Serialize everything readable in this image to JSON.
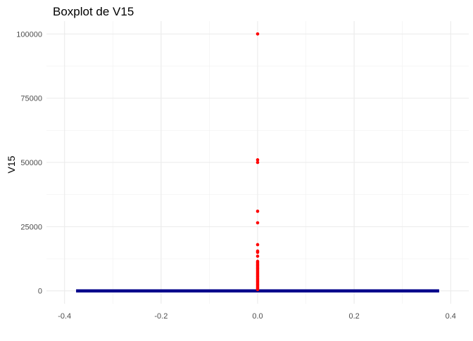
{
  "chart_data": {
    "type": "boxplot",
    "title": "Boxplot de V15",
    "xlabel": "",
    "ylabel": "V15",
    "xlim": [
      -0.4,
      0.4
    ],
    "ylim": [
      0,
      100000
    ],
    "x_ticks": [
      -0.4,
      -0.2,
      0.0,
      0.2,
      0.4
    ],
    "x_tick_labels": [
      "-0.4",
      "-0.2",
      "0.0",
      "0.2",
      "0.4"
    ],
    "y_ticks": [
      0,
      25000,
      50000,
      75000,
      100000
    ],
    "y_tick_labels": [
      "0",
      "25000",
      "50000",
      "75000",
      "100000"
    ],
    "grid": true,
    "box": {
      "x": 0,
      "width": 0.75,
      "q1": 0,
      "median": 0,
      "q3": 0,
      "whisker_low": 0,
      "whisker_high": 0,
      "color": "#00008B"
    },
    "outliers": {
      "x": 0,
      "color": "#FF0000",
      "values": [
        100000,
        51000,
        50000,
        31000,
        26500,
        18000,
        15500,
        15000,
        13500,
        11500,
        11000,
        10500,
        10000,
        9500,
        9000,
        8500,
        8000,
        7500,
        7000,
        6500,
        6000,
        5500,
        5000,
        4500,
        4000,
        3500,
        3000,
        2500,
        2000,
        1500,
        1000,
        500
      ]
    }
  }
}
